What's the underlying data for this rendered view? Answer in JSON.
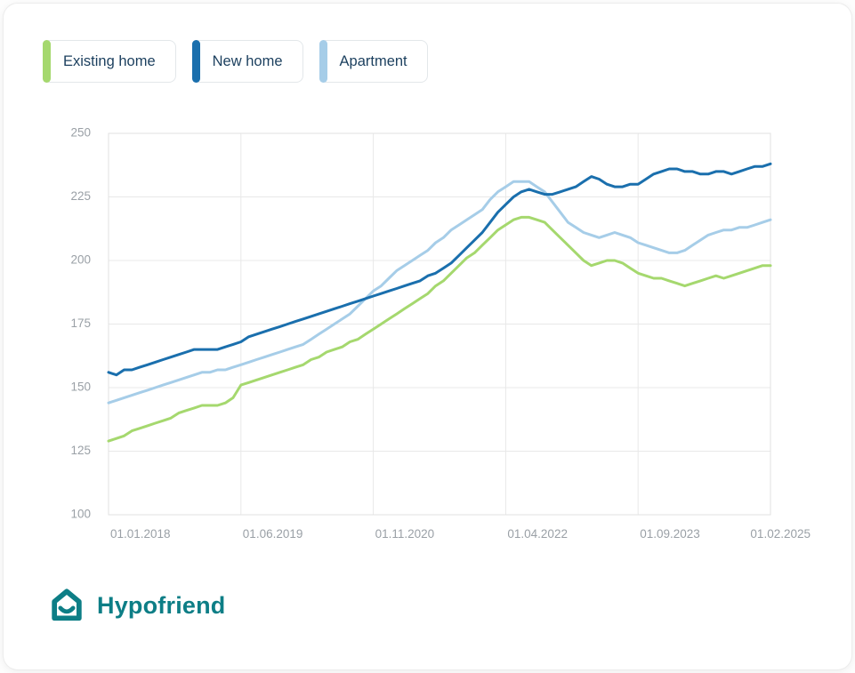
{
  "legend": {
    "items": [
      {
        "label": "Existing home",
        "color": "#a5d86e"
      },
      {
        "label": "New home",
        "color": "#1a6fad"
      },
      {
        "label": "Apartment",
        "color": "#a6cde8"
      }
    ]
  },
  "chart_data": {
    "type": "line",
    "title": "",
    "xlabel": "",
    "ylabel": "",
    "ylim": [
      100,
      250
    ],
    "y_ticks": [
      100,
      125,
      150,
      175,
      200,
      225,
      250
    ],
    "grid": true,
    "legend_position": "top-left",
    "x_tick_labels": [
      "01.01.2018",
      "01.06.2019",
      "01.11.2020",
      "01.04.2022",
      "01.09.2023",
      "01.02.2025"
    ],
    "x_tick_positions_months": [
      0,
      17,
      34,
      51,
      68,
      85
    ],
    "x_range_months": [
      0,
      85
    ],
    "x_unit": "monthly index from 01.01.2018 to 01.02.2025",
    "series": [
      {
        "name": "Existing home",
        "color": "#a5d86e",
        "values": [
          129,
          130,
          131,
          133,
          134,
          135,
          136,
          137,
          138,
          140,
          141,
          142,
          143,
          143,
          143,
          144,
          146,
          151,
          152,
          153,
          154,
          155,
          156,
          157,
          158,
          159,
          161,
          162,
          164,
          165,
          166,
          168,
          169,
          171,
          173,
          175,
          177,
          179,
          181,
          183,
          185,
          187,
          190,
          192,
          195,
          198,
          201,
          203,
          206,
          209,
          212,
          214,
          216,
          217,
          217,
          216,
          215,
          212,
          209,
          206,
          203,
          200,
          198,
          199,
          200,
          200,
          199,
          197,
          195,
          194,
          193,
          193,
          192,
          191,
          190,
          191,
          192,
          193,
          194,
          193,
          194,
          195,
          196,
          197,
          198,
          198
        ]
      },
      {
        "name": "New home",
        "color": "#1a6fad",
        "values": [
          156,
          155,
          157,
          157,
          158,
          159,
          160,
          161,
          162,
          163,
          164,
          165,
          165,
          165,
          165,
          166,
          167,
          168,
          170,
          171,
          172,
          173,
          174,
          175,
          176,
          177,
          178,
          179,
          180,
          181,
          182,
          183,
          184,
          185,
          186,
          187,
          188,
          189,
          190,
          191,
          192,
          194,
          195,
          197,
          199,
          202,
          205,
          208,
          211,
          215,
          219,
          222,
          225,
          227,
          228,
          227,
          226,
          226,
          227,
          228,
          229,
          231,
          233,
          232,
          230,
          229,
          229,
          230,
          230,
          232,
          234,
          235,
          236,
          236,
          235,
          235,
          234,
          234,
          235,
          235,
          234,
          235,
          236,
          237,
          237,
          238
        ]
      },
      {
        "name": "Apartment",
        "color": "#a6cde8",
        "values": [
          144,
          145,
          146,
          147,
          148,
          149,
          150,
          151,
          152,
          153,
          154,
          155,
          156,
          156,
          157,
          157,
          158,
          159,
          160,
          161,
          162,
          163,
          164,
          165,
          166,
          167,
          169,
          171,
          173,
          175,
          177,
          179,
          182,
          185,
          188,
          190,
          193,
          196,
          198,
          200,
          202,
          204,
          207,
          209,
          212,
          214,
          216,
          218,
          220,
          224,
          227,
          229,
          231,
          231,
          231,
          229,
          227,
          223,
          219,
          215,
          213,
          211,
          210,
          209,
          210,
          211,
          210,
          209,
          207,
          206,
          205,
          204,
          203,
          203,
          204,
          206,
          208,
          210,
          211,
          212,
          212,
          213,
          213,
          214,
          215,
          216
        ]
      }
    ]
  },
  "footer": {
    "brand": "Hypofriend",
    "brand_color": "#0d7e86"
  },
  "colors": {
    "grid": "#e8e8e8",
    "tick_text": "#9aa0a6",
    "legend_text": "#1b3f5e"
  }
}
